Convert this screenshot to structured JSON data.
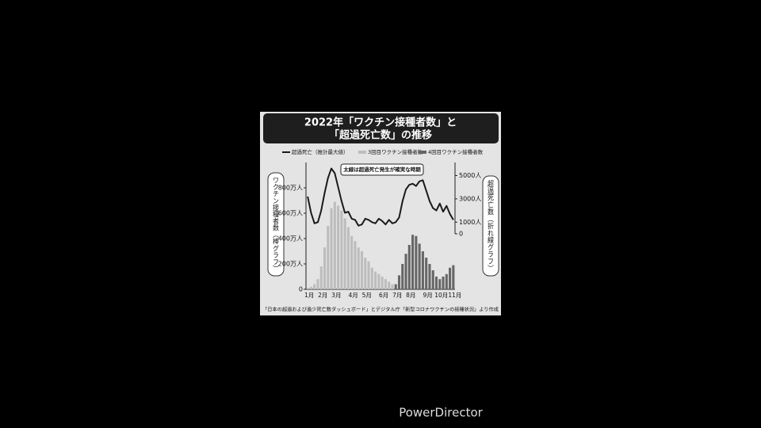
{
  "chart_data": {
    "type": "bar",
    "title": "2022年「ワクチン接種者数」と",
    "subtitle": "「超過死亡数」の推移",
    "y_label": "ワクチン接種者数（棒グラフ）",
    "y2_label": "超過死亡数（折れ線グラフ）",
    "annotation": "太線は超過死亡発生が確実な時期",
    "source": "「日本の超過および過少死亡数ダッシュボード」とデジタル庁「新型コロナワクチンの接種状況」より作成",
    "categories": [
      "1月",
      null,
      null,
      null,
      "2月",
      null,
      null,
      null,
      "3月",
      null,
      null,
      null,
      null,
      "4月",
      null,
      null,
      null,
      "5月",
      null,
      null,
      null,
      null,
      "6月",
      null,
      null,
      null,
      "7月",
      null,
      null,
      null,
      "8月",
      null,
      null,
      null,
      null,
      "9月",
      null,
      null,
      null,
      "10月",
      null,
      null,
      null,
      "11月"
    ],
    "ylim": [
      0,
      10000000
    ],
    "yticks": [
      0,
      {
        "value": 2000000,
        "label": "200万人"
      },
      {
        "value": 4000000,
        "label": "400万人"
      },
      {
        "value": 6000000,
        "label": "600万人"
      },
      {
        "value": 8000000,
        "label": "800万人"
      }
    ],
    "y2lim": [
      -4760,
      6120
    ],
    "y2ticks": [
      0,
      {
        "value": 1000,
        "label": "1000人"
      },
      {
        "value": 3000,
        "label": "3000人"
      },
      {
        "value": 5000,
        "label": "5000人"
      }
    ],
    "series": [
      {
        "name": "超過死亡（推計最大値）",
        "type": "line",
        "axis": "y2",
        "color": "#1a1a1a",
        "values": [
          3200,
          1800,
          900,
          1000,
          2000,
          3500,
          4800,
          5600,
          5200,
          4000,
          2800,
          1800,
          1900,
          1300,
          1200,
          700,
          800,
          1300,
          1200,
          1000,
          900,
          1300,
          1100,
          800,
          1200,
          900,
          1000,
          1400,
          2800,
          3800,
          4200,
          4300,
          4100,
          4500,
          4600,
          3700,
          2800,
          2200,
          2000,
          2600,
          1900,
          2400,
          1700,
          1200
        ]
      },
      {
        "name": "3回目ワクチン接種者数",
        "type": "bar",
        "color": "#bdbdbd",
        "values": [
          100000,
          200000,
          400000,
          800000,
          1800000,
          3300000,
          5000000,
          6400000,
          6900000,
          6600000,
          6200000,
          5600000,
          4900000,
          4200000,
          3800000,
          3300000,
          3000000,
          2500000,
          2200000,
          1700000,
          1400000,
          1200000,
          1000000,
          800000,
          600000,
          400000,
          null,
          null,
          null,
          null,
          null,
          null,
          null,
          null,
          null,
          null,
          null,
          null,
          null,
          null,
          null,
          null,
          null,
          null
        ]
      },
      {
        "name": "4回目ワクチン接種者数",
        "type": "bar",
        "color": "#666666",
        "values": [
          null,
          null,
          null,
          null,
          null,
          null,
          null,
          null,
          null,
          null,
          null,
          null,
          null,
          null,
          null,
          null,
          null,
          null,
          null,
          null,
          null,
          null,
          null,
          null,
          null,
          null,
          400000,
          1100000,
          2000000,
          2800000,
          3500000,
          4300000,
          4200000,
          3600000,
          3000000,
          2500000,
          2000000,
          1500000,
          1000000,
          800000,
          1000000,
          1200000,
          1700000,
          1900000
        ]
      }
    ]
  },
  "watermark": "PowerDirector"
}
